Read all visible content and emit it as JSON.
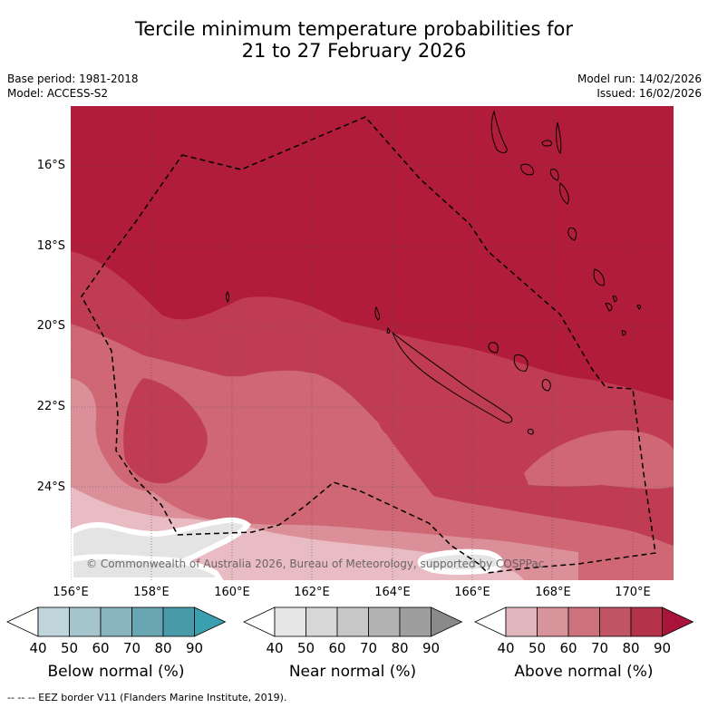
{
  "title": {
    "line1": "Tercile minimum temperature probabilities for",
    "line2": "21 to 27 February 2026"
  },
  "meta": {
    "base_period": "Base period: 1981-2018",
    "model": "Model: ACCESS-S2",
    "model_run": "Model run: 14/02/2026",
    "issued": "Issued: 16/02/2026"
  },
  "map": {
    "lat_labels": [
      "16°S",
      "18°S",
      "20°S",
      "22°S",
      "24°S"
    ],
    "lon_labels": [
      "156°E",
      "158°E",
      "160°E",
      "162°E",
      "164°E",
      "166°E",
      "168°E",
      "170°E"
    ],
    "copyright": "© Commonwealth of Australia 2026, Bureau of Meteorology, supported by COSPPac",
    "colors": {
      "above_90": "#b01c3a",
      "above_80": "#c03c53",
      "above_70": "#cf6774",
      "above_60": "#db9099",
      "above_50": "#e8bcc2",
      "near": "#e4e4e4",
      "white": "#ffffff"
    }
  },
  "legend": {
    "groups": [
      {
        "label": "Below normal (%)",
        "ticks": [
          "40",
          "50",
          "60",
          "70",
          "80",
          "90"
        ],
        "colors": [
          "#bfd5db",
          "#a4c5cc",
          "#89b5bf",
          "#6aa5b2",
          "#4a9ba9",
          "#3aa0b0"
        ]
      },
      {
        "label": "Near normal (%)",
        "ticks": [
          "40",
          "50",
          "60",
          "70",
          "80",
          "90"
        ],
        "colors": [
          "#e6e6e6",
          "#d7d7d7",
          "#c7c7c7",
          "#b3b3b3",
          "#9e9e9e",
          "#8a8a8a"
        ]
      },
      {
        "label": "Above normal (%)",
        "ticks": [
          "40",
          "50",
          "60",
          "70",
          "80",
          "90"
        ],
        "colors": [
          "#e2b7bd",
          "#d8939b",
          "#cd727c",
          "#c15564",
          "#b5334a",
          "#a9143a"
        ]
      }
    ]
  },
  "footer": "-- -- -- EEZ border V11 (Flanders Marine Institute, 2019)."
}
